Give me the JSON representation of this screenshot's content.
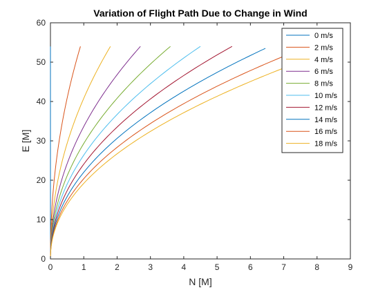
{
  "chart_data": {
    "type": "line",
    "title": "Variation of Flight Path Due to Change in Wind",
    "xlabel": "N [M]",
    "ylabel": "E [M]",
    "xlim": [
      0,
      9
    ],
    "ylim": [
      0,
      60
    ],
    "xticks": [
      "0",
      "1",
      "2",
      "3",
      "4",
      "5",
      "6",
      "7",
      "8",
      "9"
    ],
    "yticks": [
      "0",
      "10",
      "20",
      "30",
      "40",
      "50",
      "60"
    ],
    "grid": false,
    "legend_position": "top-right",
    "series": [
      {
        "name": "0 m/s",
        "color": "#0072BD",
        "x": [
          0,
          0
        ],
        "y": [
          0,
          54
        ]
      },
      {
        "name": "2 m/s",
        "color": "#D95319",
        "x": [
          0,
          0.9
        ],
        "y": [
          0,
          54
        ]
      },
      {
        "name": "4 m/s",
        "color": "#EDB120",
        "x": [
          0,
          1.8
        ],
        "y": [
          0,
          54
        ]
      },
      {
        "name": "6 m/s",
        "color": "#7E2F8E",
        "x": [
          0,
          2.7
        ],
        "y": [
          0,
          54
        ]
      },
      {
        "name": "8 m/s",
        "color": "#77AC30",
        "x": [
          0,
          3.6
        ],
        "y": [
          0,
          54
        ]
      },
      {
        "name": "10 m/s",
        "color": "#4DBEEE",
        "x": [
          0,
          4.5
        ],
        "y": [
          0,
          54
        ]
      },
      {
        "name": "12 m/s",
        "color": "#A2142F",
        "x": [
          0,
          5.45
        ],
        "y": [
          0,
          54
        ]
      },
      {
        "name": "14 m/s",
        "color": "#0072BD",
        "x": [
          0,
          6.45
        ],
        "y": [
          0,
          53.5
        ]
      },
      {
        "name": "16 m/s",
        "color": "#D95319",
        "x": [
          0,
          7.0
        ],
        "y": [
          0,
          51.5
        ]
      },
      {
        "name": "18 m/s",
        "color": "#EDB120",
        "x": [
          0,
          7.0
        ],
        "y": [
          0,
          48.5
        ]
      }
    ]
  }
}
